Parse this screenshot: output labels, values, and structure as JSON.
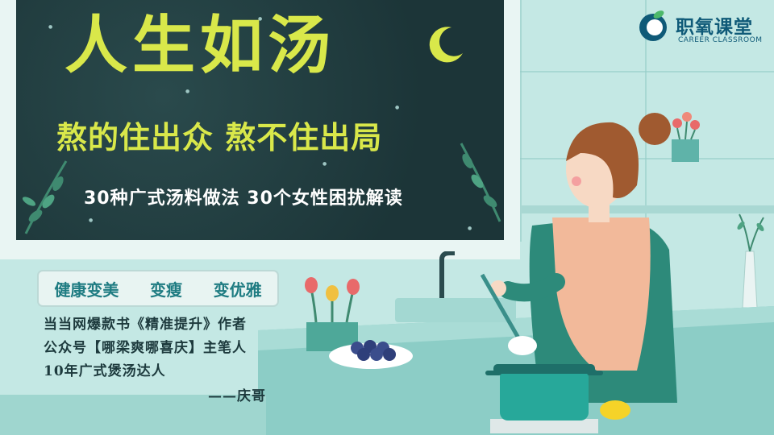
{
  "banner": {
    "title": "人生如汤",
    "subtitle": "熬的住出众  熬不住出局",
    "tagline": "30种广式汤料做法  30个女性困扰解读"
  },
  "logo": {
    "name": "职氧课堂",
    "subtitle": "CAREER CLASSROOM"
  },
  "benefits": [
    "健康变美",
    "变瘦",
    "变优雅"
  ],
  "author": {
    "lines": [
      "当当网爆款书《精准提升》作者",
      "公众号【哪梁爽哪喜庆】主笔人",
      "10年广式煲汤达人"
    ],
    "signature": "——庆哥"
  },
  "colors": {
    "board": "#1d3a3d",
    "title_yellow": "#d9e84a",
    "accent_teal": "#1f7c82",
    "logo_blue": "#0f5a78"
  }
}
